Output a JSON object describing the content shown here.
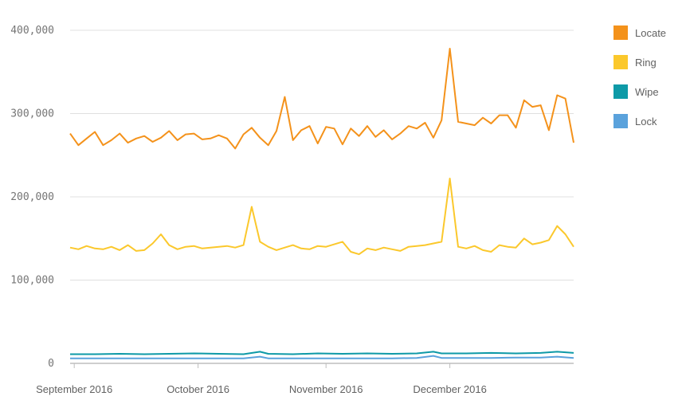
{
  "chart_data": {
    "type": "line",
    "title": "",
    "xlabel": "",
    "ylabel": "",
    "ylim": [
      0,
      400000
    ],
    "xlim": [
      "2016-08-31",
      "2016-12-31"
    ],
    "grid": true,
    "legend_position": "right",
    "y_ticks": [
      {
        "value": 0,
        "label": "0"
      },
      {
        "value": 100000,
        "label": "100,000"
      },
      {
        "value": 200000,
        "label": "200,000"
      },
      {
        "value": 300000,
        "label": "300,000"
      },
      {
        "value": 400000,
        "label": "400,000"
      }
    ],
    "x_ticks": [
      {
        "date": "2016-09-01",
        "label": "September 2016"
      },
      {
        "date": "2016-10-01",
        "label": "October 2016"
      },
      {
        "date": "2016-11-01",
        "label": "November 2016"
      },
      {
        "date": "2016-12-01",
        "label": "December 2016"
      }
    ],
    "series": [
      {
        "name": "Locate",
        "color": "#f4921b",
        "x": [
          "2016-08-31",
          "2016-09-02",
          "2016-09-04",
          "2016-09-06",
          "2016-09-08",
          "2016-09-10",
          "2016-09-12",
          "2016-09-14",
          "2016-09-16",
          "2016-09-18",
          "2016-09-20",
          "2016-09-22",
          "2016-09-24",
          "2016-09-26",
          "2016-09-28",
          "2016-09-30",
          "2016-10-02",
          "2016-10-04",
          "2016-10-06",
          "2016-10-08",
          "2016-10-10",
          "2016-10-12",
          "2016-10-14",
          "2016-10-16",
          "2016-10-18",
          "2016-10-20",
          "2016-10-22",
          "2016-10-24",
          "2016-10-26",
          "2016-10-28",
          "2016-10-30",
          "2016-11-01",
          "2016-11-03",
          "2016-11-05",
          "2016-11-07",
          "2016-11-09",
          "2016-11-11",
          "2016-11-13",
          "2016-11-15",
          "2016-11-17",
          "2016-11-19",
          "2016-11-21",
          "2016-11-23",
          "2016-11-25",
          "2016-11-27",
          "2016-11-29",
          "2016-12-01",
          "2016-12-03",
          "2016-12-05",
          "2016-12-07",
          "2016-12-09",
          "2016-12-11",
          "2016-12-13",
          "2016-12-15",
          "2016-12-17",
          "2016-12-19",
          "2016-12-21",
          "2016-12-23",
          "2016-12-25",
          "2016-12-27",
          "2016-12-29",
          "2016-12-31"
        ],
        "values": [
          276000,
          262000,
          270000,
          278000,
          262000,
          268000,
          276000,
          265000,
          270000,
          273000,
          266000,
          271000,
          279000,
          268000,
          275000,
          276000,
          269000,
          270000,
          274000,
          270000,
          258000,
          275000,
          283000,
          271000,
          262000,
          279000,
          320000,
          268000,
          280000,
          285000,
          264000,
          284000,
          282000,
          263000,
          282000,
          273000,
          285000,
          272000,
          280000,
          269000,
          276000,
          285000,
          282000,
          289000,
          271000,
          292000,
          378000,
          290000,
          288000,
          286000,
          295000,
          288000,
          298000,
          298000,
          283000,
          316000,
          308000,
          310000,
          280000,
          322000,
          318000,
          265000
        ]
      },
      {
        "name": "Ring",
        "color": "#fbc82c",
        "x": [
          "2016-08-31",
          "2016-09-02",
          "2016-09-04",
          "2016-09-06",
          "2016-09-08",
          "2016-09-10",
          "2016-09-12",
          "2016-09-14",
          "2016-09-16",
          "2016-09-18",
          "2016-09-20",
          "2016-09-22",
          "2016-09-24",
          "2016-09-26",
          "2016-09-28",
          "2016-09-30",
          "2016-10-02",
          "2016-10-04",
          "2016-10-06",
          "2016-10-08",
          "2016-10-10",
          "2016-10-12",
          "2016-10-14",
          "2016-10-16",
          "2016-10-18",
          "2016-10-20",
          "2016-10-22",
          "2016-10-24",
          "2016-10-26",
          "2016-10-28",
          "2016-10-30",
          "2016-11-01",
          "2016-11-03",
          "2016-11-05",
          "2016-11-07",
          "2016-11-09",
          "2016-11-11",
          "2016-11-13",
          "2016-11-15",
          "2016-11-17",
          "2016-11-19",
          "2016-11-21",
          "2016-11-23",
          "2016-11-25",
          "2016-11-27",
          "2016-11-29",
          "2016-12-01",
          "2016-12-03",
          "2016-12-05",
          "2016-12-07",
          "2016-12-09",
          "2016-12-11",
          "2016-12-13",
          "2016-12-15",
          "2016-12-17",
          "2016-12-19",
          "2016-12-21",
          "2016-12-23",
          "2016-12-25",
          "2016-12-27",
          "2016-12-29",
          "2016-12-31"
        ],
        "values": [
          139000,
          137000,
          141000,
          138000,
          137000,
          140000,
          136000,
          142000,
          135000,
          136000,
          144000,
          155000,
          142000,
          137000,
          140000,
          141000,
          138000,
          139000,
          140000,
          141000,
          139000,
          142000,
          188000,
          146000,
          140000,
          136000,
          139000,
          142000,
          138000,
          137000,
          141000,
          140000,
          143000,
          146000,
          134000,
          131000,
          138000,
          136000,
          139000,
          137000,
          135000,
          140000,
          141000,
          142000,
          144000,
          146000,
          222000,
          140000,
          138000,
          141000,
          136000,
          134000,
          142000,
          140000,
          139000,
          150000,
          143000,
          145000,
          148000,
          165000,
          155000,
          140000
        ]
      },
      {
        "name": "Wipe",
        "color": "#0e9aa7",
        "x": [
          "2016-08-31",
          "2016-09-06",
          "2016-09-12",
          "2016-09-18",
          "2016-09-24",
          "2016-09-30",
          "2016-10-06",
          "2016-10-12",
          "2016-10-16",
          "2016-10-18",
          "2016-10-24",
          "2016-10-30",
          "2016-11-05",
          "2016-11-11",
          "2016-11-17",
          "2016-11-23",
          "2016-11-27",
          "2016-11-29",
          "2016-12-05",
          "2016-12-11",
          "2016-12-17",
          "2016-12-23",
          "2016-12-27",
          "2016-12-31"
        ],
        "values": [
          11000,
          11000,
          11500,
          11000,
          11500,
          12000,
          11500,
          11000,
          14000,
          11500,
          11000,
          12000,
          11500,
          12000,
          11500,
          12000,
          14000,
          12000,
          12000,
          12500,
          12000,
          12500,
          14000,
          12500
        ]
      },
      {
        "name": "Lock",
        "color": "#5aa2dc",
        "x": [
          "2016-08-31",
          "2016-09-06",
          "2016-09-12",
          "2016-09-18",
          "2016-09-24",
          "2016-09-30",
          "2016-10-06",
          "2016-10-12",
          "2016-10-16",
          "2016-10-18",
          "2016-10-24",
          "2016-10-30",
          "2016-11-05",
          "2016-11-11",
          "2016-11-17",
          "2016-11-23",
          "2016-11-27",
          "2016-11-29",
          "2016-12-05",
          "2016-12-11",
          "2016-12-17",
          "2016-12-23",
          "2016-12-27",
          "2016-12-31"
        ],
        "values": [
          6000,
          6000,
          6000,
          6000,
          6000,
          6000,
          6000,
          6000,
          8000,
          6000,
          6000,
          6000,
          6000,
          6000,
          6000,
          6500,
          9000,
          6500,
          6500,
          6500,
          7000,
          7000,
          8000,
          6500
        ]
      }
    ]
  }
}
